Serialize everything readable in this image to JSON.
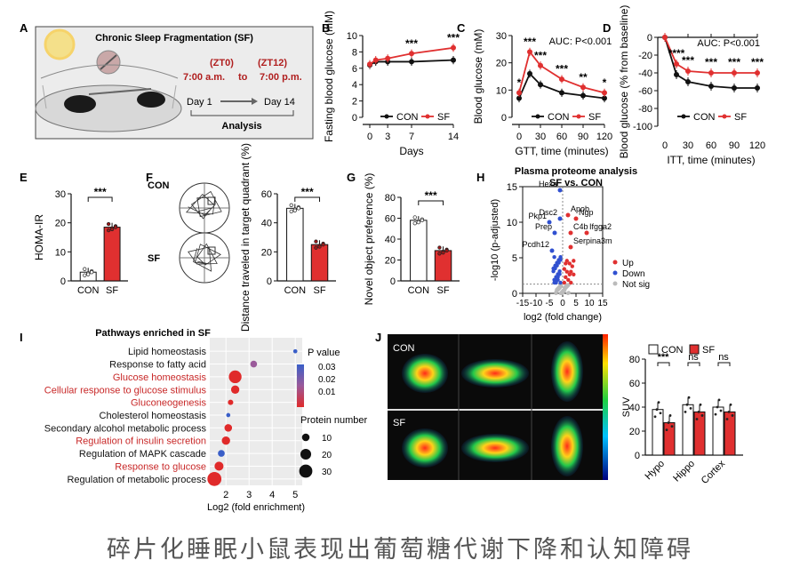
{
  "colors": {
    "con": "#111111",
    "sf": "#e03030",
    "sig": "#c82828",
    "up": "#e03030",
    "down": "#3050d0",
    "notsig": "#bbbbbb"
  },
  "caption": "碎片化睡眠小鼠表现出葡萄糖代谢下降和认知障碍",
  "panelA": {
    "letter": "A",
    "title": "Chronic Sleep Fragmentation (SF)",
    "zt0": "(ZT0)",
    "zt12": "(ZT12)",
    "time_start": "7:00 a.m.",
    "to": "to",
    "time_end": "7:00 p.m.",
    "day1": "Day 1",
    "day14": "Day 14",
    "analysis": "Analysis"
  },
  "chart_data": [
    {
      "id": "B",
      "type": "line",
      "letter": "B",
      "title": "",
      "ylabel": "Fasting blood glucose (mM)",
      "xlabel": "Days",
      "x": [
        0,
        1,
        3,
        7,
        14
      ],
      "xticks": [
        "0",
        "3",
        "7",
        "14"
      ],
      "xtick_vals": [
        0,
        3,
        7,
        14
      ],
      "ylim": [
        0,
        10
      ],
      "yticks": [
        0,
        2,
        4,
        6,
        8,
        10
      ],
      "series": [
        {
          "name": "CON",
          "values": [
            6.4,
            6.8,
            6.8,
            6.8,
            7.0
          ]
        },
        {
          "name": "SF",
          "values": [
            6.5,
            7.0,
            7.2,
            7.8,
            8.5
          ]
        }
      ],
      "sig": [
        {
          "x": 7,
          "label": "***"
        },
        {
          "x": 14,
          "label": "***"
        }
      ],
      "legend": [
        "CON",
        "SF"
      ]
    },
    {
      "id": "C",
      "type": "line",
      "letter": "C",
      "ylabel": "Blood glucose (mM)",
      "xlabel": "GTT, time (minutes)",
      "x": [
        0,
        15,
        30,
        60,
        90,
        120
      ],
      "xticks": [
        "0",
        "30",
        "60",
        "90",
        "120"
      ],
      "xtick_vals": [
        0,
        30,
        60,
        90,
        120
      ],
      "ylim": [
        0,
        30
      ],
      "yticks": [
        0,
        10,
        20,
        30
      ],
      "series": [
        {
          "name": "CON",
          "values": [
            7,
            16,
            12,
            9,
            8,
            7
          ]
        },
        {
          "name": "SF",
          "values": [
            9,
            24,
            19,
            14,
            11,
            9
          ]
        }
      ],
      "annot": "AUC: P<0.001",
      "sig": [
        {
          "x": 0,
          "label": "*"
        },
        {
          "x": 15,
          "label": "***"
        },
        {
          "x": 30,
          "label": "***"
        },
        {
          "x": 60,
          "label": "***"
        },
        {
          "x": 90,
          "label": "**"
        },
        {
          "x": 120,
          "label": "*"
        }
      ],
      "legend": [
        "CON",
        "SF"
      ]
    },
    {
      "id": "D",
      "type": "line",
      "letter": "D",
      "ylabel": "Blood glucose (% from baseline)",
      "xlabel": "ITT, time (minutes)",
      "x": [
        0,
        15,
        30,
        60,
        90,
        120
      ],
      "xticks": [
        "0",
        "30",
        "60",
        "90",
        "120"
      ],
      "xtick_vals": [
        0,
        30,
        60,
        90,
        120
      ],
      "ylim": [
        -100,
        0
      ],
      "yticks": [
        0,
        -20,
        -40,
        -60,
        -80,
        -100
      ],
      "series": [
        {
          "name": "CON",
          "values": [
            0,
            -42,
            -50,
            -55,
            -57,
            -57
          ]
        },
        {
          "name": "SF",
          "values": [
            0,
            -30,
            -38,
            -40,
            -40,
            -40
          ]
        }
      ],
      "annot": "AUC: P<0.001",
      "sig": [
        {
          "x": 15,
          "label": "****"
        },
        {
          "x": 30,
          "label": "***"
        },
        {
          "x": 60,
          "label": "***"
        },
        {
          "x": 90,
          "label": "***"
        },
        {
          "x": 120,
          "label": "***"
        }
      ],
      "legend": [
        "CON",
        "SF"
      ]
    },
    {
      "id": "E",
      "type": "bar",
      "letter": "E",
      "ylabel": "HOMA-IR",
      "categories": [
        "CON",
        "SF"
      ],
      "values": [
        3,
        18.5
      ],
      "ylim": [
        0,
        30
      ],
      "yticks": [
        0,
        10,
        20,
        30
      ],
      "sig": "***"
    },
    {
      "id": "F",
      "type": "bar",
      "letter": "F",
      "ylabel": "Distance traveled in target quadrant (%)",
      "categories": [
        "CON",
        "SF"
      ],
      "values": [
        50,
        25
      ],
      "ylim": [
        0,
        60
      ],
      "yticks": [
        0,
        20,
        40,
        60
      ],
      "sig": "***",
      "row_labels": [
        "CON",
        "SF"
      ]
    },
    {
      "id": "G",
      "type": "bar",
      "letter": "G",
      "ylabel": "Novel object preference (%)",
      "categories": [
        "CON",
        "SF"
      ],
      "values": [
        58,
        29
      ],
      "ylim": [
        0,
        80
      ],
      "yticks": [
        0,
        20,
        40,
        60,
        80
      ],
      "sig": "***"
    },
    {
      "id": "H",
      "type": "scatter",
      "letter": "H",
      "title": "Plasma proteome analysis",
      "subtitle": "SF vs. CON",
      "ylabel": "-log10 (p-adjusted)",
      "xlabel": "log2 (fold change)",
      "xlim": [
        -15,
        15
      ],
      "xticks": [
        -15,
        -10,
        -5,
        0,
        5,
        10,
        15
      ],
      "ylim": [
        0,
        15
      ],
      "yticks": [
        0,
        5,
        10,
        15
      ],
      "labels": [
        {
          "name": "Hexa",
          "x": -1,
          "y": 14.5
        },
        {
          "name": "Pkp1",
          "x": -5,
          "y": 10
        },
        {
          "name": "Dsc2",
          "x": -1,
          "y": 10.5
        },
        {
          "name": "Prep",
          "x": -3,
          "y": 8.5
        },
        {
          "name": "Pcdh12",
          "x": -4,
          "y": 6
        },
        {
          "name": "Apob",
          "x": 2,
          "y": 11
        },
        {
          "name": "Ngp",
          "x": 5,
          "y": 10.5
        },
        {
          "name": "C4b",
          "x": 3,
          "y": 8.5
        },
        {
          "name": "Ifgga2",
          "x": 9,
          "y": 8.5
        },
        {
          "name": "Serpina3m",
          "x": 3,
          "y": 6.5
        }
      ],
      "legend": [
        "Up",
        "Down",
        "Not sig"
      ]
    },
    {
      "id": "I",
      "type": "scatter",
      "letter": "I",
      "title": "Pathways enriched in SF",
      "xlabel": "Log2 (fold enrichment)",
      "xlim": [
        1.3,
        5.3
      ],
      "xticks": [
        2,
        3,
        4,
        5
      ],
      "pathways": [
        {
          "name": "Lipid homeostasis",
          "x": 5.0,
          "size": 3,
          "p": 0.035,
          "highlight": false
        },
        {
          "name": "Response to fatty acid",
          "x": 3.2,
          "size": 8,
          "p": 0.022,
          "highlight": false
        },
        {
          "name": "Glucose homeostasis",
          "x": 2.4,
          "size": 28,
          "p": 0.004,
          "highlight": true
        },
        {
          "name": "Cellular response to glucose stimulus",
          "x": 2.4,
          "size": 12,
          "p": 0.006,
          "highlight": true
        },
        {
          "name": "Gluconeogenesis",
          "x": 2.2,
          "size": 5,
          "p": 0.008,
          "highlight": true
        },
        {
          "name": "Cholesterol homeostasis",
          "x": 2.1,
          "size": 3,
          "p": 0.04,
          "highlight": false
        },
        {
          "name": "Secondary alcohol metabolic process",
          "x": 2.1,
          "size": 10,
          "p": 0.012,
          "highlight": false
        },
        {
          "name": "Regulation of insulin secretion",
          "x": 2.0,
          "size": 12,
          "p": 0.008,
          "highlight": true
        },
        {
          "name": "Regulation of MAPK cascade",
          "x": 1.8,
          "size": 8,
          "p": 0.038,
          "highlight": false
        },
        {
          "name": "Response to glucose",
          "x": 1.7,
          "size": 14,
          "p": 0.006,
          "highlight": true
        },
        {
          "name": "Regulation of metabolic process",
          "x": 1.5,
          "size": 34,
          "p": 0.003,
          "highlight": false
        }
      ],
      "legend_p_title": "P value",
      "legend_p_ticks": [
        "0.03",
        "0.02",
        "0.01"
      ],
      "legend_size_title": "Protein number",
      "legend_sizes": [
        10,
        20,
        30
      ]
    },
    {
      "id": "J",
      "type": "bar",
      "letter": "J",
      "ylabel": "SUV",
      "categories": [
        "Hypo",
        "Hippo",
        "Cortex"
      ],
      "series": [
        {
          "name": "CON",
          "values": [
            38,
            42,
            40
          ]
        },
        {
          "name": "SF",
          "values": [
            27,
            36,
            36
          ]
        }
      ],
      "ylim": [
        0,
        80
      ],
      "yticks": [
        0,
        20,
        40,
        60,
        80
      ],
      "sig": [
        "***",
        "ns",
        "ns"
      ],
      "row_labels": [
        "CON",
        "SF"
      ]
    }
  ]
}
